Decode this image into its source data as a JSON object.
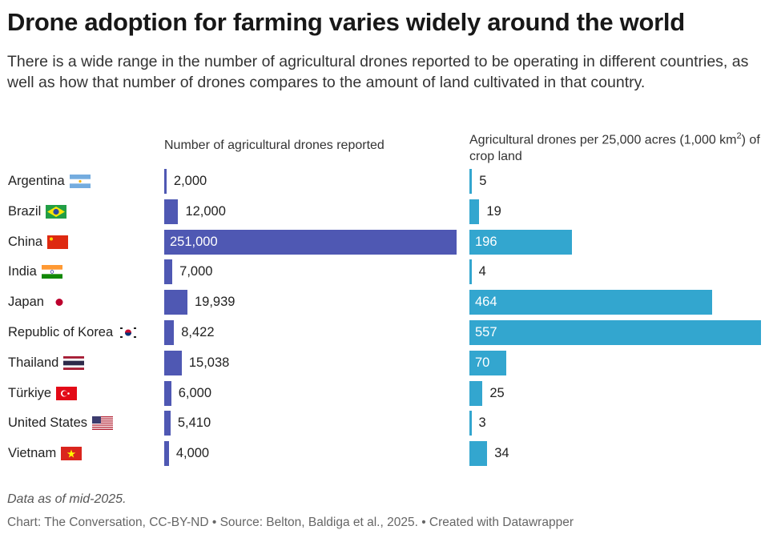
{
  "title": "Drone adoption for farming varies widely around the world",
  "subtitle": "There is a wide range in the number of agricultural drones reported to be operating in different countries, as well as how that number of drones compares to the amount of land cultivated in that country.",
  "note": "Data as of mid-2025.",
  "credit": "Chart: The Conversation, CC-BY-ND • Source: Belton, Baldiga et al., 2025. • Created with Datawrapper",
  "chart_data": {
    "type": "bar",
    "orientation": "horizontal",
    "categories": [
      "Argentina",
      "Brazil",
      "China",
      "India",
      "Japan",
      "Republic of Korea",
      "Thailand",
      "Türkiye",
      "United States",
      "Vietnam"
    ],
    "flags": [
      "flag-argentina-icon",
      "flag-brazil-icon",
      "flag-china-icon",
      "flag-india-icon",
      "flag-japan-icon",
      "flag-korea-icon",
      "flag-thailand-icon",
      "flag-turkiye-icon",
      "flag-usa-icon",
      "flag-vietnam-icon"
    ],
    "series": [
      {
        "name": "Number of agricultural drones reported",
        "values": [
          2000,
          12000,
          251000,
          7000,
          19939,
          8422,
          15038,
          6000,
          5410,
          4000
        ],
        "labels": [
          "2,000",
          "12,000",
          "251,000",
          "7,000",
          "19,939",
          "8,422",
          "15,038",
          "6,000",
          "5,410",
          "4,000"
        ],
        "color": "#4f58b3"
      },
      {
        "name": "Agricultural drones per 25,000 acres (1,000 km²) of crop land",
        "name_main": "Agricultural drones per 25,000 acres (1,000 km",
        "name_sup": "2",
        "name_end": ") of crop land",
        "values": [
          5,
          19,
          196,
          4,
          464,
          557,
          70,
          25,
          3,
          34
        ],
        "labels": [
          "5",
          "19",
          "196",
          "4",
          "464",
          "557",
          "70",
          "25",
          "3",
          "34"
        ],
        "color": "#33a6cf"
      }
    ],
    "grid": false,
    "legend": "column headers"
  }
}
